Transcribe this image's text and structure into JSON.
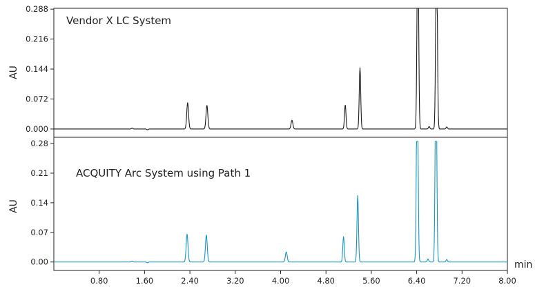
{
  "chart_data": [
    {
      "type": "line",
      "title": "Vendor X LC System",
      "ylabel": "AU",
      "xlabel": "min",
      "color": "#1a1a1a",
      "ylim": [
        -0.02,
        0.29
      ],
      "yticks": [
        "0.000",
        "0.072",
        "0.144",
        "0.216",
        "0.288"
      ],
      "ytick_values": [
        0.0,
        0.072,
        0.144,
        0.216,
        0.288
      ],
      "xlim": [
        0.0,
        8.0
      ],
      "baseline": 0.0,
      "peaks": [
        {
          "x": 1.38,
          "y": 0.002,
          "w": 0.012
        },
        {
          "x": 1.65,
          "y": -0.002,
          "w": 0.012
        },
        {
          "x": 2.36,
          "y": 0.063,
          "w": 0.016
        },
        {
          "x": 2.7,
          "y": 0.057,
          "w": 0.016
        },
        {
          "x": 4.2,
          "y": 0.021,
          "w": 0.016
        },
        {
          "x": 5.14,
          "y": 0.058,
          "w": 0.013
        },
        {
          "x": 5.4,
          "y": 0.147,
          "w": 0.013
        },
        {
          "x": 6.42,
          "y": 0.5,
          "w": 0.014
        },
        {
          "x": 6.62,
          "y": 0.006,
          "w": 0.012
        },
        {
          "x": 6.75,
          "y": 0.5,
          "w": 0.014
        },
        {
          "x": 6.93,
          "y": 0.005,
          "w": 0.012
        }
      ]
    },
    {
      "type": "line",
      "title": "ACQUITY Arc System using Path 1",
      "ylabel": "AU",
      "xlabel": "min",
      "color": "#1596c2",
      "ylim": [
        -0.02,
        0.285
      ],
      "yticks": [
        "0.00",
        "0.07",
        "0.14",
        "0.21",
        "0.28"
      ],
      "ytick_values": [
        0.0,
        0.07,
        0.14,
        0.21,
        0.28
      ],
      "xlim": [
        0.0,
        8.0
      ],
      "xticks": [
        "0.80",
        "1.60",
        "2.40",
        "3.20",
        "4.00",
        "4.80",
        "5.60",
        "6.40",
        "7.20",
        "8.00"
      ],
      "xtick_values": [
        0.8,
        1.6,
        2.4,
        3.2,
        4.0,
        4.8,
        5.6,
        6.4,
        7.2,
        8.0
      ],
      "baseline": 0.0,
      "peaks": [
        {
          "x": 1.38,
          "y": 0.002,
          "w": 0.012
        },
        {
          "x": 1.65,
          "y": -0.002,
          "w": 0.012
        },
        {
          "x": 2.35,
          "y": 0.066,
          "w": 0.016
        },
        {
          "x": 2.69,
          "y": 0.064,
          "w": 0.016
        },
        {
          "x": 4.1,
          "y": 0.024,
          "w": 0.016
        },
        {
          "x": 5.11,
          "y": 0.06,
          "w": 0.013
        },
        {
          "x": 5.36,
          "y": 0.157,
          "w": 0.013
        },
        {
          "x": 6.41,
          "y": 0.5,
          "w": 0.014
        },
        {
          "x": 6.6,
          "y": 0.007,
          "w": 0.012
        },
        {
          "x": 6.74,
          "y": 0.5,
          "w": 0.014
        },
        {
          "x": 6.93,
          "y": 0.006,
          "w": 0.012
        }
      ]
    }
  ]
}
